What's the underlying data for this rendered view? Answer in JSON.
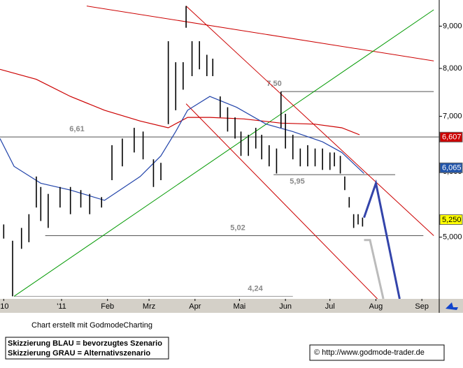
{
  "chart_data": {
    "type": "hilo",
    "log_scale": true,
    "grid": false,
    "color": "#000000",
    "xlim": [
      -41.5,
      254.7
    ],
    "xticks": [
      {
        "value": -39,
        "label": "'10"
      },
      {
        "value": 0,
        "label": "'11"
      },
      {
        "value": 31,
        "label": "Feb"
      },
      {
        "value": 59,
        "label": "Mrz"
      },
      {
        "value": 90,
        "label": "Apr"
      },
      {
        "value": 120,
        "label": "Mai"
      },
      {
        "value": 151,
        "label": "Jun"
      },
      {
        "value": 181,
        "label": "Jul"
      },
      {
        "value": 212,
        "label": "Aug"
      },
      {
        "value": 243,
        "label": "Sep"
      }
    ],
    "ylim": [
      4.21,
      9.68
    ],
    "yticks": [
      {
        "value": 5,
        "label": "5,000"
      },
      {
        "value": 6,
        "label": "6,000"
      },
      {
        "value": 7,
        "label": "7,000"
      },
      {
        "value": 8,
        "label": "8,000"
      },
      {
        "value": 9,
        "label": "9,000"
      }
    ],
    "x": [
      -39,
      -33,
      -27,
      -22,
      -17,
      -14,
      -9,
      -1,
      6,
      13,
      19,
      27,
      34,
      41,
      49,
      55,
      62,
      67,
      72,
      77,
      82,
      84,
      88,
      93,
      98,
      102,
      107,
      112,
      117,
      121,
      126,
      131,
      135,
      140,
      145,
      148,
      151,
      156,
      161,
      166,
      171,
      176,
      181,
      184,
      188,
      191,
      194,
      197,
      200,
      203
    ],
    "high": [
      5.18,
      4.95,
      5.13,
      5.33,
      5.92,
      5.75,
      5.64,
      5.75,
      5.75,
      5.7,
      5.64,
      5.59,
      6.46,
      6.58,
      6.78,
      6.71,
      6.21,
      6.15,
      8.63,
      8.14,
      8.14,
      9.52,
      8.63,
      8.63,
      8.31,
      8.22,
      7.4,
      7.18,
      6.98,
      6.71,
      6.65,
      6.78,
      6.65,
      6.46,
      6.4,
      7.5,
      7.05,
      6.65,
      6.4,
      6.46,
      6.4,
      6.4,
      6.33,
      6.33,
      6.27,
      5.92,
      5.59,
      5.33,
      5.33,
      5.28
    ],
    "low": [
      4.98,
      4.24,
      4.84,
      4.93,
      5.43,
      5.23,
      5.13,
      5.43,
      5.33,
      5.43,
      5.33,
      5.43,
      5.86,
      6.09,
      6.33,
      6.21,
      5.75,
      5.86,
      6.85,
      7.12,
      7.54,
      8.96,
      7.83,
      7.98,
      7.83,
      7.83,
      6.98,
      6.71,
      6.58,
      6.27,
      6.27,
      6.4,
      6.21,
      6.09,
      5.97,
      6.78,
      6.4,
      6.21,
      6.09,
      6.09,
      6.09,
      6.03,
      6.03,
      6.09,
      5.97,
      5.7,
      5.43,
      5.13,
      5.18,
      5.15
    ],
    "moving_averages": [
      {
        "color": "#cc0000",
        "x": [
          -41.5,
          -17,
          6,
          29,
          53,
          72,
          85,
          100,
          123,
          148,
          171,
          189,
          201
        ],
        "values": [
          7.98,
          7.76,
          7.4,
          7.12,
          6.91,
          6.78,
          6.98,
          6.98,
          6.95,
          6.87,
          6.85,
          6.78,
          6.65
        ]
      },
      {
        "color": "#2244aa",
        "x": [
          -41.5,
          -32,
          -14,
          6,
          29,
          53,
          67,
          77,
          85,
          100,
          118,
          138,
          156,
          176,
          189,
          204
        ],
        "values": [
          6.58,
          6.09,
          5.81,
          5.7,
          5.54,
          5.92,
          6.27,
          6.71,
          7.12,
          7.4,
          7.18,
          6.85,
          6.71,
          6.52,
          6.33,
          5.97
        ]
      }
    ],
    "trend_lines": [
      {
        "color": "#cc0000",
        "x": [
          17,
          251
        ],
        "values": [
          9.52,
          8.17
        ]
      },
      {
        "color": "#009900",
        "x": [
          -32,
          251
        ],
        "values": [
          4.24,
          9.42
        ]
      },
      {
        "color": "#cc0000",
        "x": [
          84,
          251
        ],
        "values": [
          9.52,
          5.02
        ]
      },
      {
        "color": "#cc0000",
        "x": [
          84,
          213
        ],
        "values": [
          7.25,
          4.21
        ]
      }
    ],
    "levels": {
      "values": [
        6.61,
        7.5,
        5.95,
        5.02,
        4.24
      ],
      "value_labels": [
        "6,61",
        "7,50",
        "5,95",
        "5,02",
        "4,24"
      ],
      "x_start": [
        -41.5,
        148,
        143,
        -11,
        -32
      ],
      "x_end": [
        254.7,
        251,
        225,
        244,
        156
      ],
      "colors": [
        "#555555",
        "#555555",
        "#555555",
        "#555555",
        "#999999"
      ]
    },
    "scenarios": [
      {
        "color": "#3344aa",
        "x": [
          204,
          212,
          228
        ],
        "values": [
          5.28,
          5.81,
          4.21
        ]
      },
      {
        "color": "#bbbbbb",
        "x": [
          204,
          208,
          217
        ],
        "values": [
          4.96,
          4.96,
          4.21
        ]
      }
    ],
    "price_tags": {
      "values": [
        6.607,
        6.065,
        5.25
      ],
      "value_labels": [
        "6,607",
        "6,065",
        "5,250"
      ],
      "colors": [
        "#cc0000",
        "#2255aa",
        "#ffff00"
      ]
    },
    "credit": "Chart erstellt mit GodmodeCharting",
    "legend_lines": [
      "Skizzierung BLAU = bevorzugtes Szenario",
      "Skizzierung GRAU = Alternativszenario"
    ],
    "copyright": "© http://www.godmode-trader.de"
  }
}
